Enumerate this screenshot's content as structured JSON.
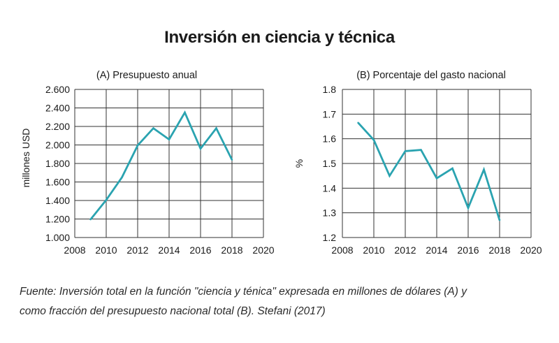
{
  "title": "Inversión en ciencia y técnica",
  "chart_data": [
    {
      "type": "line",
      "title": "(A) Presupuesto anual",
      "xlabel": "",
      "ylabel": "millones USD",
      "x": [
        2009,
        2010,
        2011,
        2012,
        2013,
        2014,
        2015,
        2016,
        2017,
        2018
      ],
      "values": [
        1195,
        1405,
        1650,
        1995,
        2180,
        2060,
        2350,
        1960,
        2180,
        1840
      ],
      "xlim": [
        2008,
        2020
      ],
      "ylim": [
        1000,
        2600
      ],
      "xticks": [
        2008,
        2010,
        2012,
        2014,
        2016,
        2018,
        2020
      ],
      "xtick_labels": [
        "2008",
        "2010",
        "2012",
        "2014",
        "2016",
        "2018",
        "2020"
      ],
      "yticks": [
        1000,
        1200,
        1400,
        1600,
        1800,
        2000,
        2200,
        2400,
        2600
      ],
      "ytick_labels": [
        "1.000",
        "1.200",
        "1.400",
        "1.600",
        "1.800",
        "2.000",
        "2.200",
        "2.400",
        "2.600"
      ],
      "grid": true,
      "color": "#2aa3b0"
    },
    {
      "type": "line",
      "title": "(B) Porcentaje del gasto nacional",
      "xlabel": "",
      "ylabel": "%",
      "x": [
        2009,
        2010,
        2011,
        2012,
        2013,
        2014,
        2015,
        2016,
        2017,
        2018
      ],
      "values": [
        1.665,
        1.595,
        1.45,
        1.55,
        1.555,
        1.44,
        1.48,
        1.32,
        1.475,
        1.27
      ],
      "xlim": [
        2008,
        2020
      ],
      "ylim": [
        1.2,
        1.8
      ],
      "xticks": [
        2008,
        2010,
        2012,
        2014,
        2016,
        2018,
        2020
      ],
      "xtick_labels": [
        "2008",
        "2010",
        "2012",
        "2014",
        "2016",
        "2018",
        "2020"
      ],
      "yticks": [
        1.2,
        1.3,
        1.4,
        1.5,
        1.6,
        1.7,
        1.8
      ],
      "ytick_labels": [
        "1.2",
        "1.3",
        "1.4",
        "1.5",
        "1.6",
        "1.7",
        "1.8"
      ],
      "grid": true,
      "color": "#2aa3b0"
    }
  ],
  "caption": {
    "line1": "Fuente: Inversión total en la función \"ciencia y ténica\" expresada en millones de dólares (A) y",
    "line2": "como fracción del presupuesto nacional total (B). Stefani (2017)"
  }
}
